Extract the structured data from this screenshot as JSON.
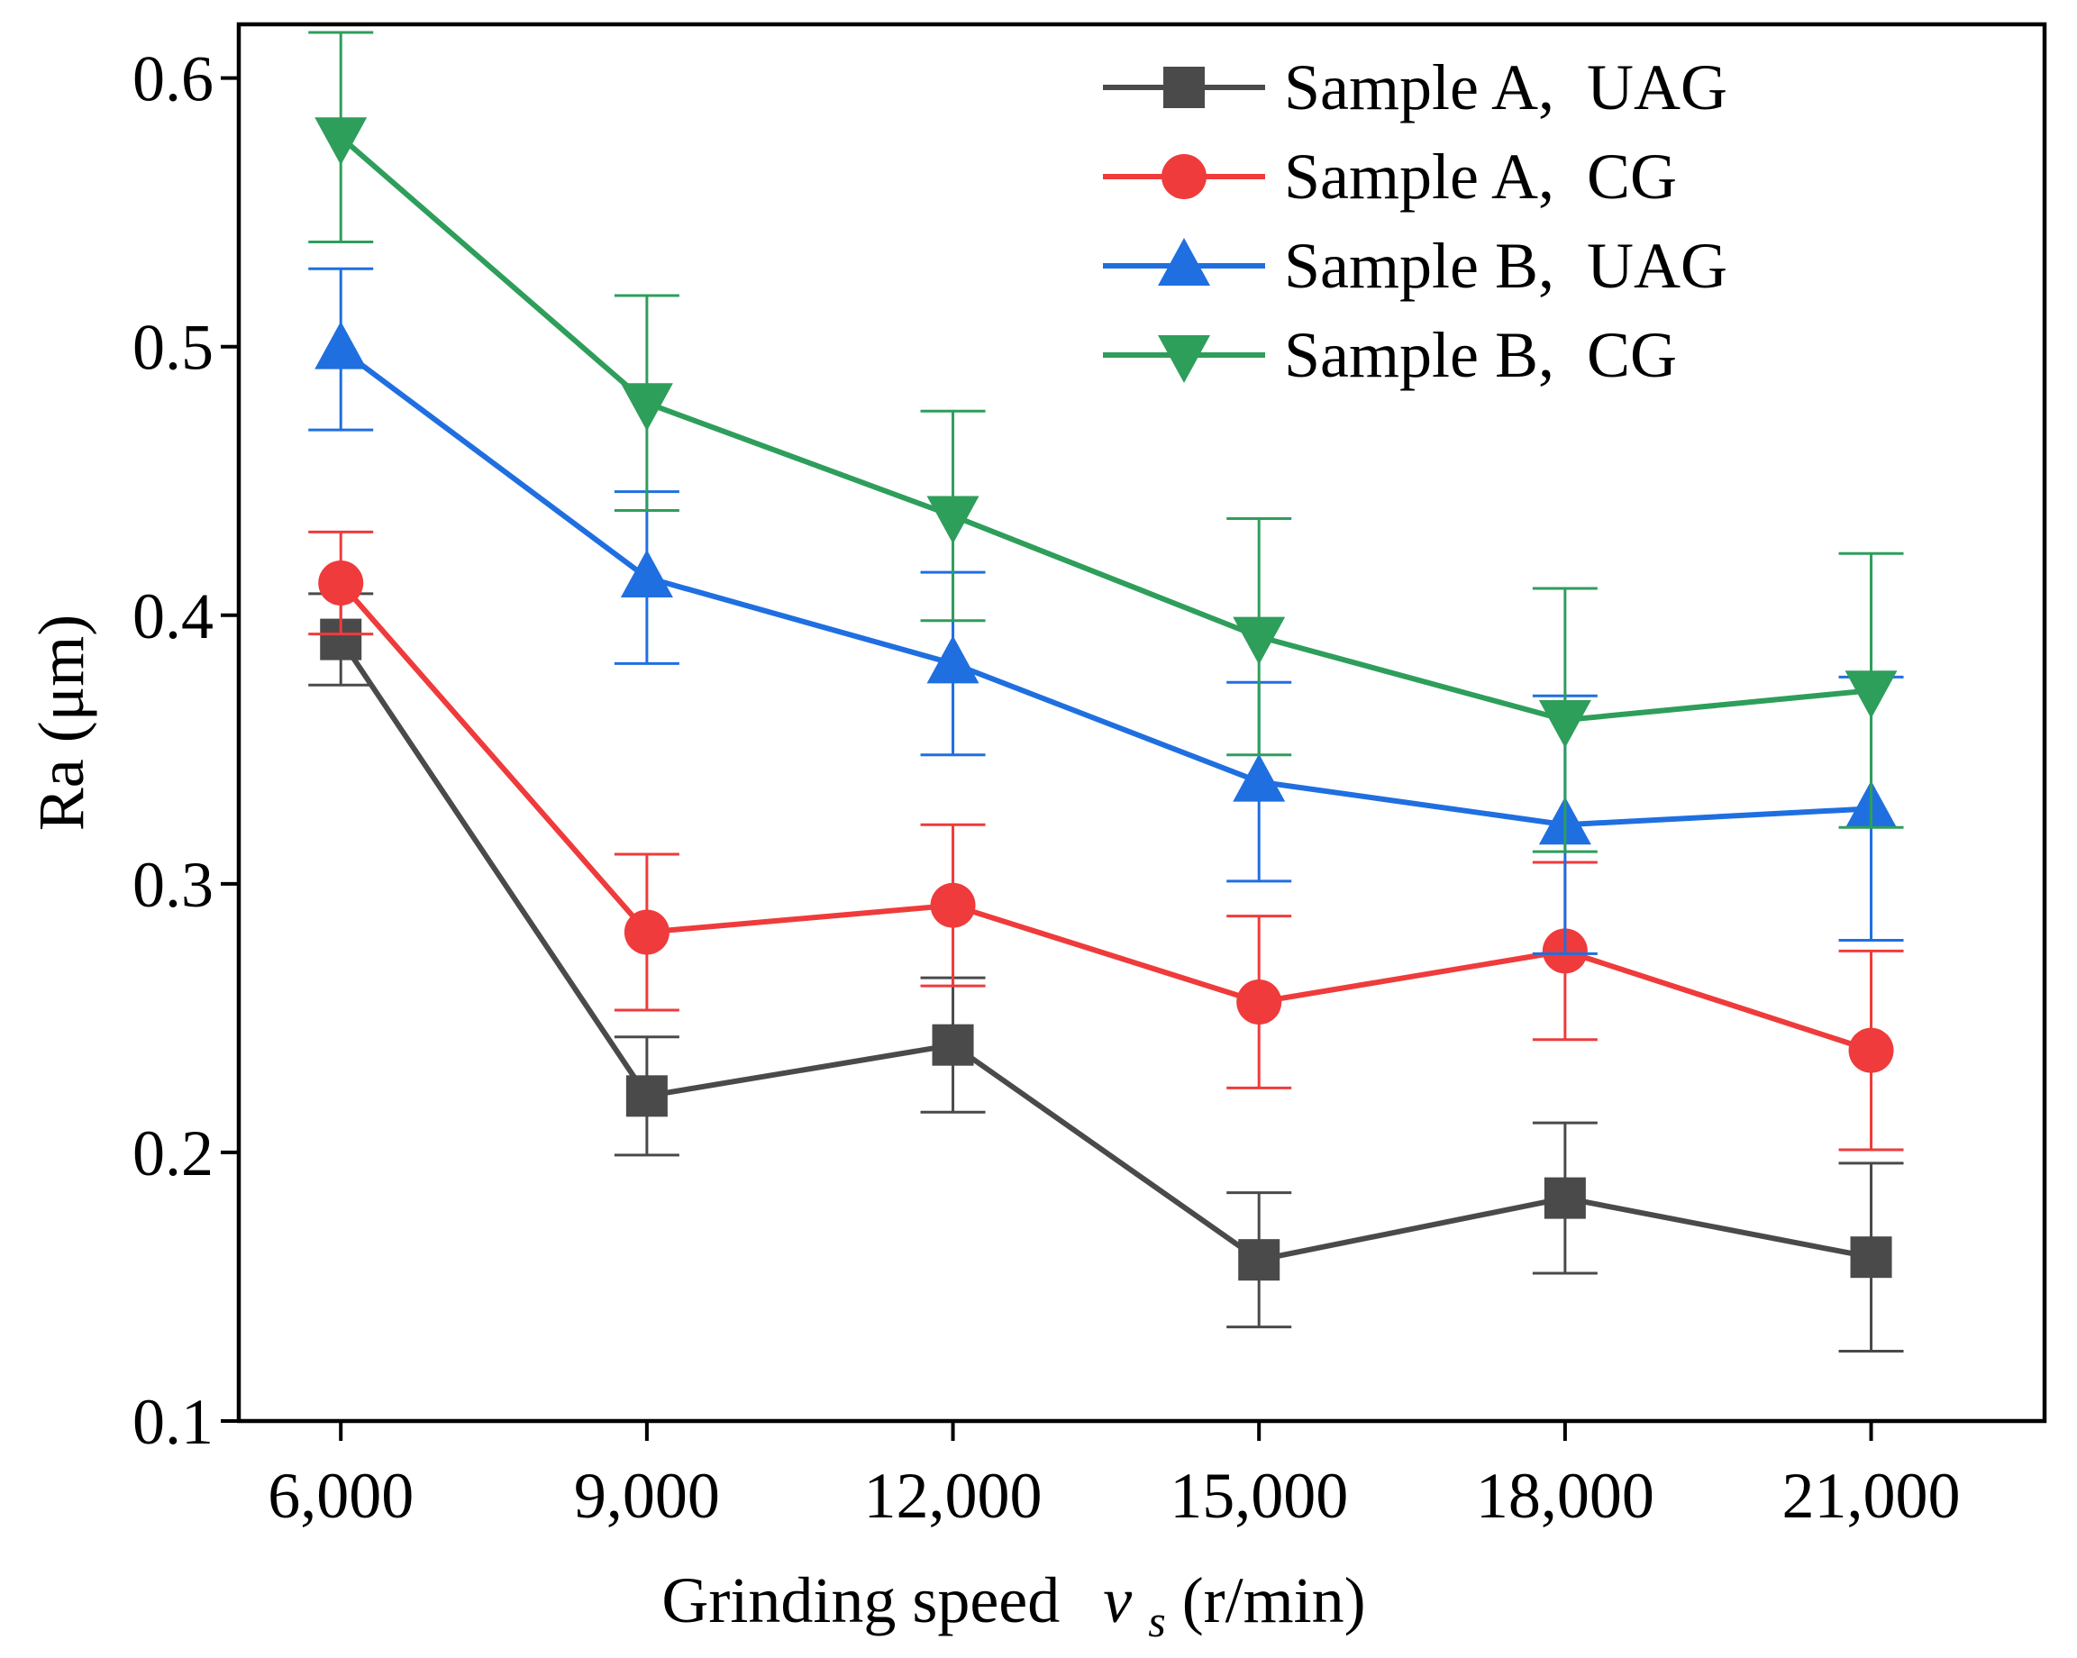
{
  "chart_data": {
    "type": "line",
    "title": "",
    "xlabel_prefix": "Grinding speed",
    "xlabel_var": "v",
    "xlabel_sub": "s",
    "xlabel_unit": "(r/min)",
    "ylabel": "Ra (μm)",
    "categories": [
      "6,000",
      "9,000",
      "12,000",
      "15,000",
      "18,000",
      "21,000"
    ],
    "x": [
      6000,
      9000,
      12000,
      15000,
      18000,
      21000
    ],
    "xlim": [
      5000,
      22700
    ],
    "ylim": [
      0.1,
      0.62
    ],
    "yticks": [
      0.1,
      0.2,
      0.3,
      0.4,
      0.5,
      0.6
    ],
    "ytick_labels": [
      "0.1",
      "0.2",
      "0.3",
      "0.4",
      "0.5",
      "0.6"
    ],
    "grid": false,
    "legend_position": "top-right",
    "series": [
      {
        "name": "Sample A,  UAG",
        "color": "#4a4a4a",
        "marker": "square",
        "values": [
          0.391,
          0.221,
          0.24,
          0.16,
          0.183,
          0.161
        ],
        "errors": [
          0.017,
          0.022,
          0.025,
          0.025,
          0.028,
          0.035
        ]
      },
      {
        "name": "Sample A,  CG",
        "color": "#ef3b3b",
        "marker": "circle",
        "values": [
          0.412,
          0.282,
          0.292,
          0.256,
          0.275,
          0.238
        ],
        "errors": [
          0.019,
          0.029,
          0.03,
          0.032,
          0.033,
          0.037
        ]
      },
      {
        "name": "Sample B,  UAG",
        "color": "#1f6fe0",
        "marker": "triangle-up",
        "values": [
          0.499,
          0.414,
          0.382,
          0.338,
          0.322,
          0.328
        ],
        "errors": [
          0.03,
          0.032,
          0.034,
          0.037,
          0.048,
          0.049
        ]
      },
      {
        "name": "Sample B,  CG",
        "color": "#2e9e5b",
        "marker": "triangle-down",
        "values": [
          0.578,
          0.479,
          0.437,
          0.392,
          0.361,
          0.372
        ],
        "errors": [
          0.039,
          0.04,
          0.039,
          0.044,
          0.049,
          0.051
        ]
      }
    ]
  }
}
